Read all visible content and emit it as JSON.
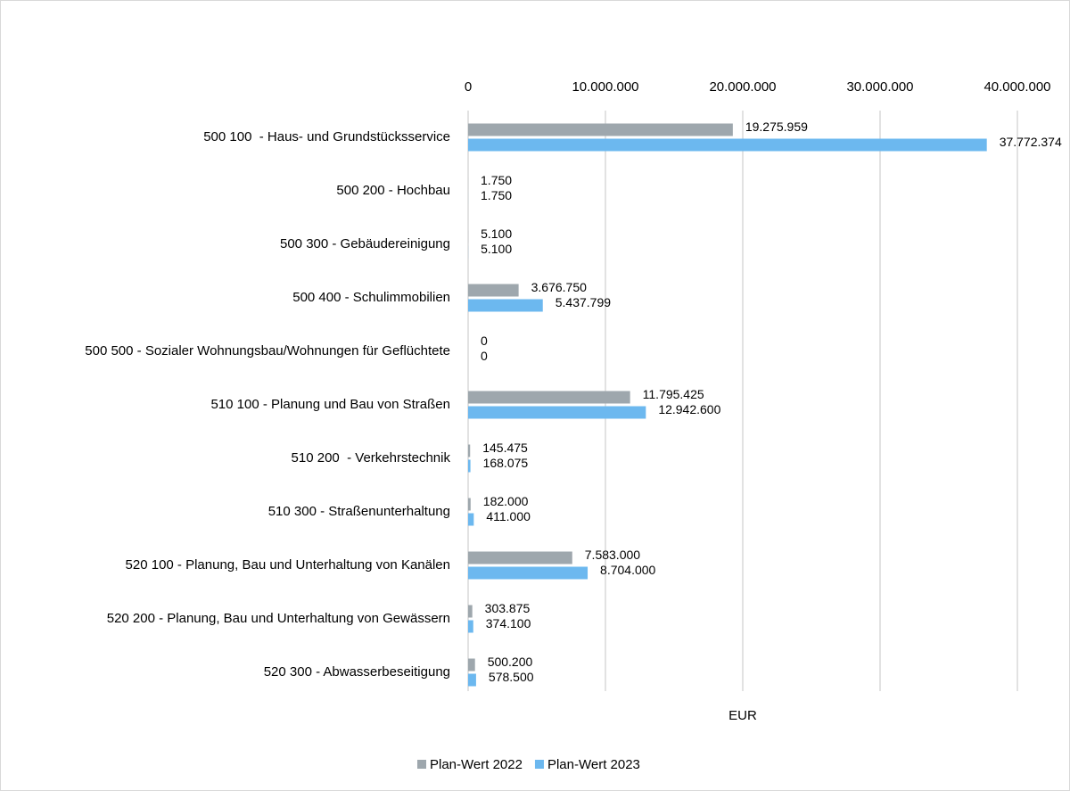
{
  "chart_data": {
    "type": "bar",
    "orientation": "horizontal",
    "categories": [
      "500 100  - Haus- und Grundstücksservice",
      "500 200 - Hochbau",
      "500 300 - Gebäudereinigung",
      "500 400 - Schulimmobilien",
      "500 500 - Sozialer Wohnungsbau/Wohnungen für Geflüchtete",
      "510 100 - Planung und Bau von Straßen",
      "510 200  - Verkehrstechnik",
      "510 300 - Straßenunterhaltung",
      "520 100 - Planung, Bau und Unterhaltung von Kanälen",
      "520 200 - Planung, Bau und Unterhaltung von Gewässern",
      "520 300 - Abwasserbeseitigung"
    ],
    "series": [
      {
        "name": "Plan-Wert 2022",
        "color": "#9ea7ad",
        "values": [
          19275959,
          1750,
          5100,
          3676750,
          0,
          11795425,
          145475,
          182000,
          7583000,
          303875,
          500200
        ],
        "value_labels": [
          "19.275.959",
          "1.750",
          "5.100",
          "3.676.750",
          "0",
          "11.795.425",
          "145.475",
          "182.000",
          "7.583.000",
          "303.875",
          "500.200"
        ]
      },
      {
        "name": "Plan-Wert 2023",
        "color": "#6cb8ef",
        "values": [
          37772374,
          1750,
          5100,
          5437799,
          0,
          12942600,
          168075,
          411000,
          8704000,
          374100,
          578500
        ],
        "value_labels": [
          "37.772.374",
          "1.750",
          "5.100",
          "5.437.799",
          "0",
          "12.942.600",
          "168.075",
          "411.000",
          "8.704.000",
          "374.100",
          "578.500"
        ]
      }
    ],
    "x_label": "EUR",
    "xlim": [
      0,
      40000000
    ],
    "xticks": [
      0,
      {
        "value": 10000000,
        "label": "10.000.000"
      },
      {
        "value": 20000000,
        "label": "20.000.000"
      },
      {
        "value": 30000000,
        "label": "30.000.000"
      },
      {
        "value": 40000000,
        "label": "40.000.000"
      }
    ],
    "grid": true,
    "legend": "bottom"
  }
}
